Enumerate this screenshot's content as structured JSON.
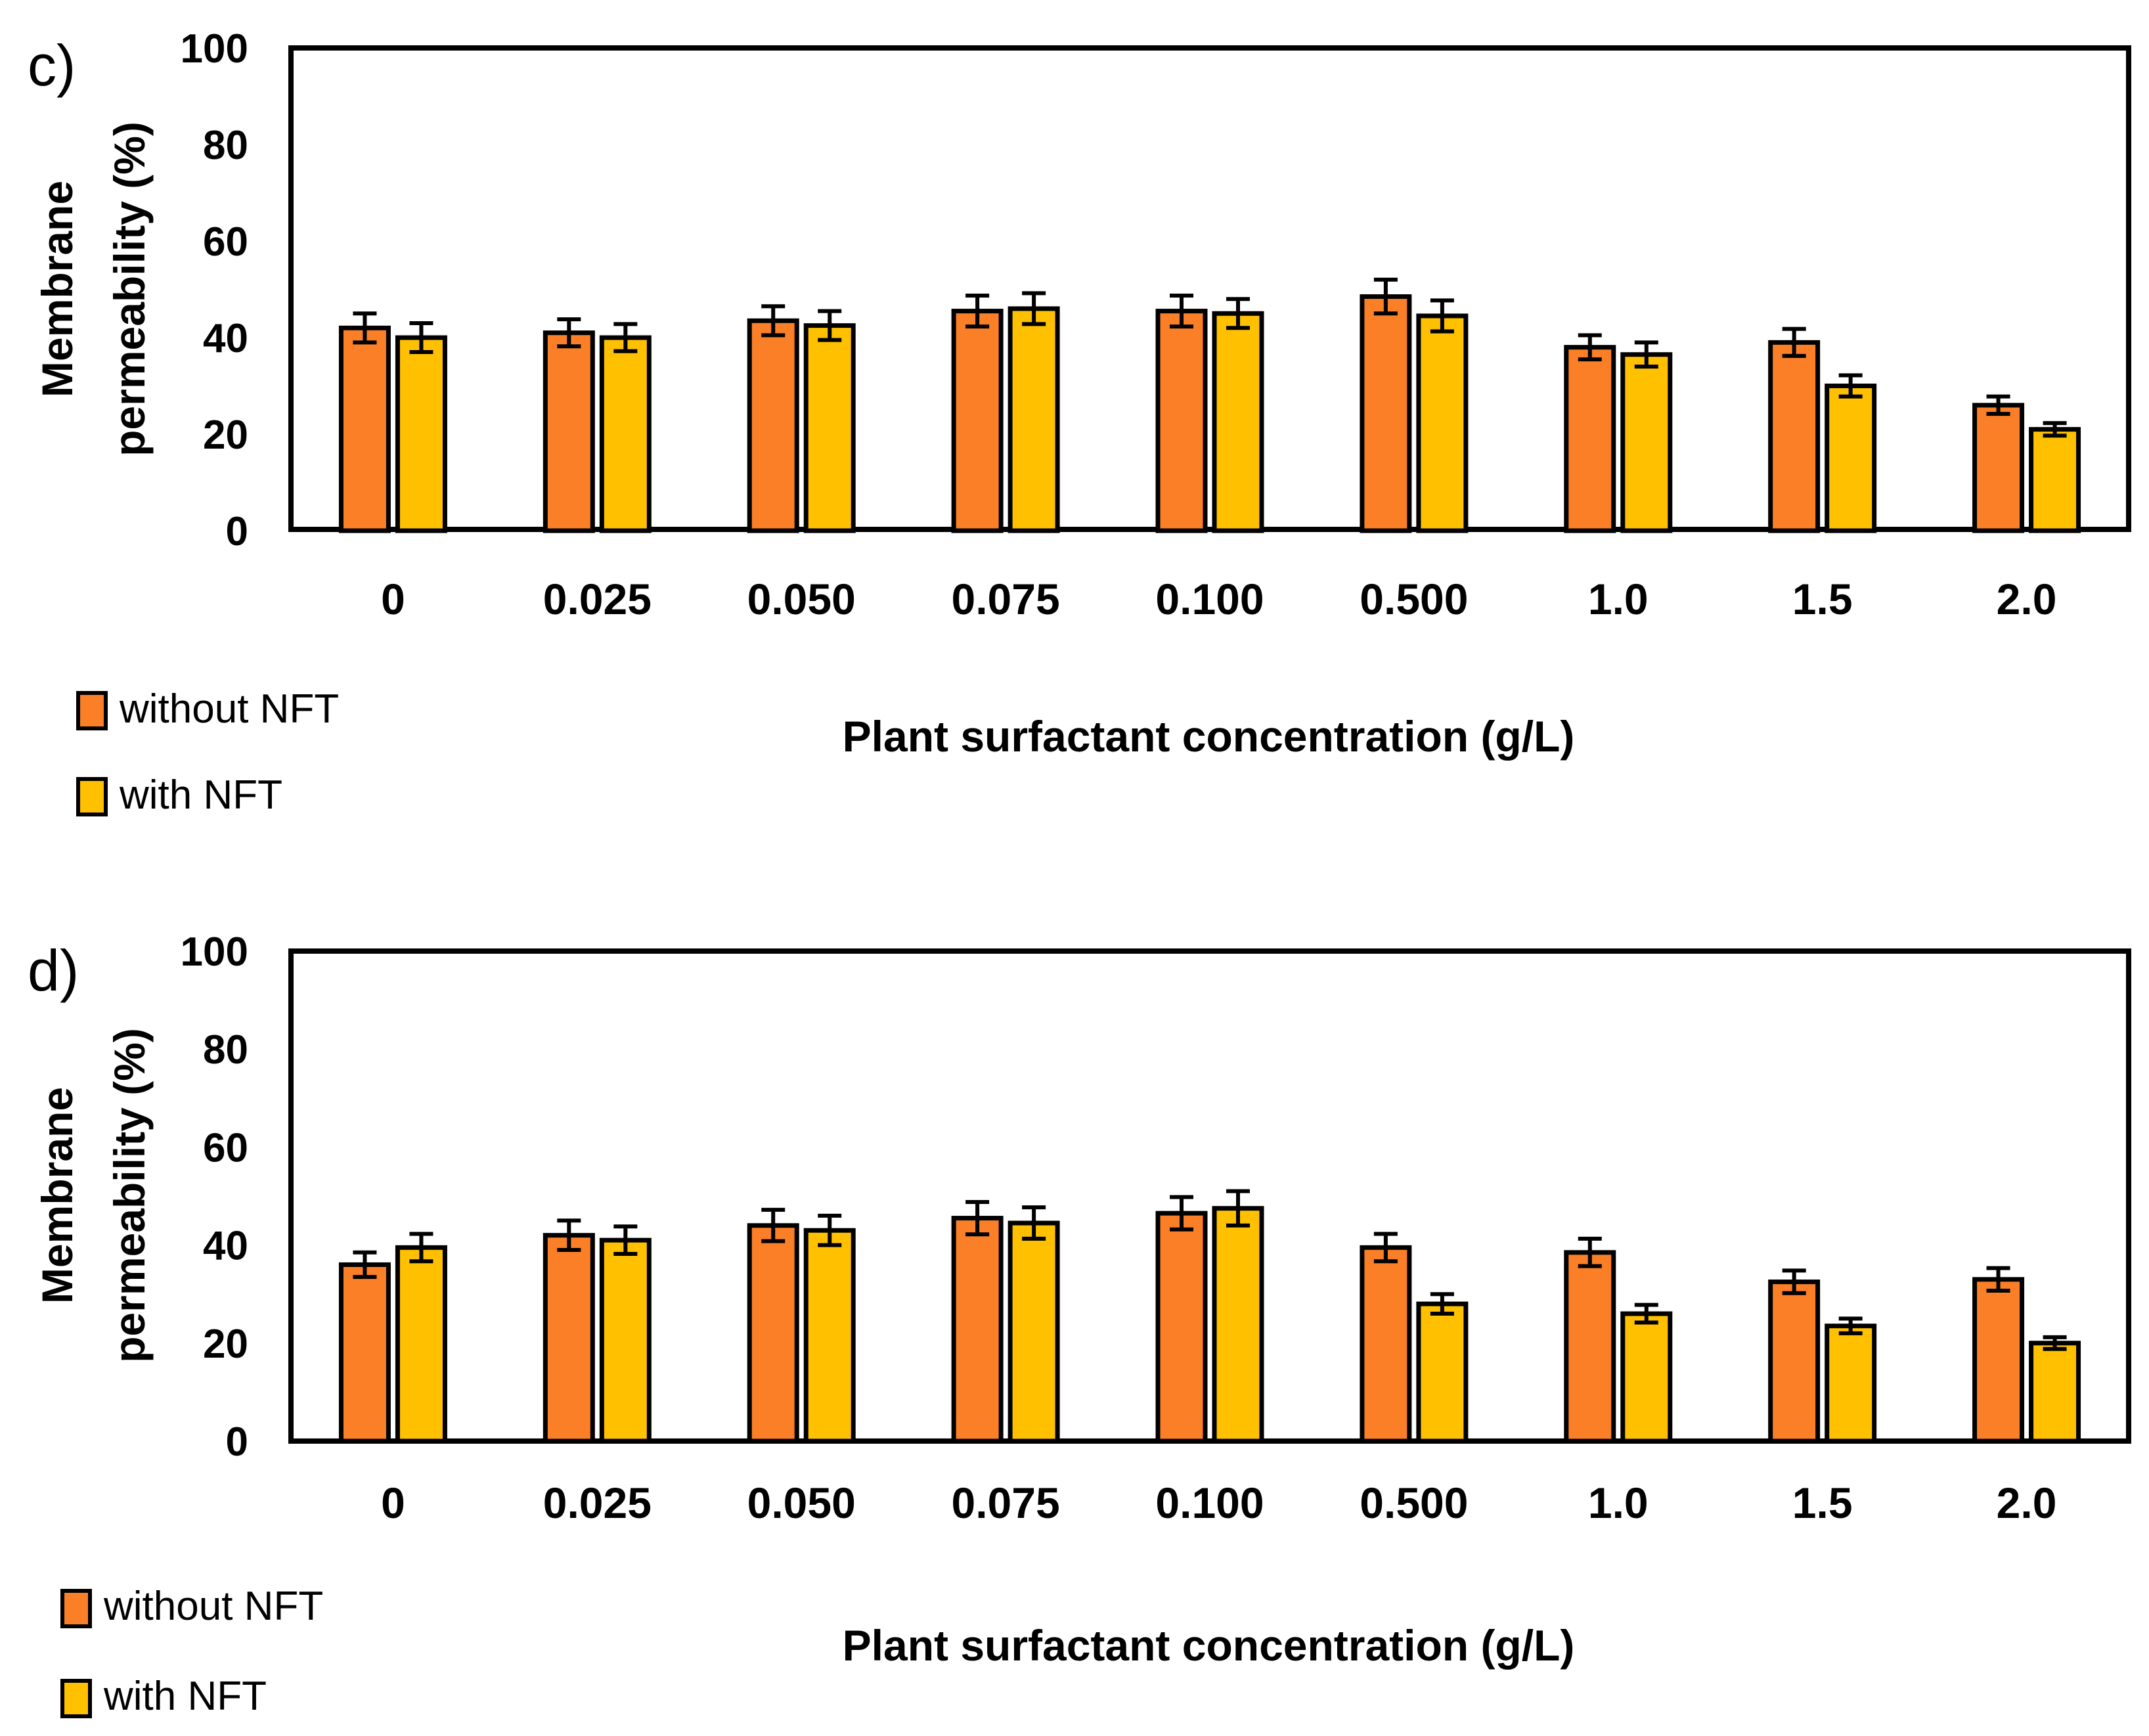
{
  "colors": {
    "without_nft": "#FB7F26",
    "with_nft": "#FFC000",
    "stroke": "#000000"
  },
  "chart_data": [
    {
      "panel": "c)",
      "type": "bar",
      "categories": [
        "0",
        "0.025",
        "0.050",
        "0.075",
        "0.100",
        "0.500",
        "1.0",
        "1.5",
        "2.0"
      ],
      "series": [
        {
          "name": "without NFT",
          "values": [
            42,
            41,
            43.5,
            45.5,
            45.5,
            48.5,
            38,
            39,
            26
          ],
          "errors": [
            3,
            2.8,
            3,
            3.2,
            3.2,
            3.5,
            2.5,
            2.8,
            1.8
          ]
        },
        {
          "name": "with NFT",
          "values": [
            40,
            40,
            42.5,
            46,
            45,
            44.5,
            36.5,
            30,
            21
          ],
          "errors": [
            3,
            2.8,
            3,
            3.2,
            3,
            3.2,
            2.5,
            2.2,
            1.3
          ]
        }
      ],
      "xlabel": "Plant surfactant concentration (g/L)",
      "ylabel_line1": "Membrane",
      "ylabel_line2": "permeability (%)",
      "ylim": [
        0,
        100
      ],
      "yticks": [
        "0",
        "20",
        "40",
        "60",
        "80",
        "100"
      ],
      "legend": "bottom-left"
    },
    {
      "panel": "d)",
      "type": "bar",
      "categories": [
        "0",
        "0.025",
        "0.050",
        "0.075",
        "0.100",
        "0.500",
        "1.0",
        "1.5",
        "2.0"
      ],
      "series": [
        {
          "name": "without NFT",
          "values": [
            36,
            42,
            44,
            45.5,
            46.5,
            39.5,
            38.5,
            32.5,
            33
          ],
          "errors": [
            2.5,
            3,
            3.2,
            3.3,
            3.3,
            2.8,
            2.8,
            2.3,
            2.3
          ]
        },
        {
          "name": "with NFT",
          "values": [
            39.5,
            41,
            43,
            44.5,
            47.5,
            28,
            26,
            23.5,
            20
          ],
          "errors": [
            2.8,
            2.8,
            3,
            3.2,
            3.5,
            2,
            1.8,
            1.5,
            1.2
          ]
        }
      ],
      "xlabel": "Plant surfactant concentration (g/L)",
      "ylabel_line1": "Membrane",
      "ylabel_line2": "permeability (%)",
      "ylim": [
        0,
        100
      ],
      "yticks": [
        "0",
        "20",
        "40",
        "60",
        "80",
        "100"
      ],
      "legend": "bottom-left"
    }
  ]
}
